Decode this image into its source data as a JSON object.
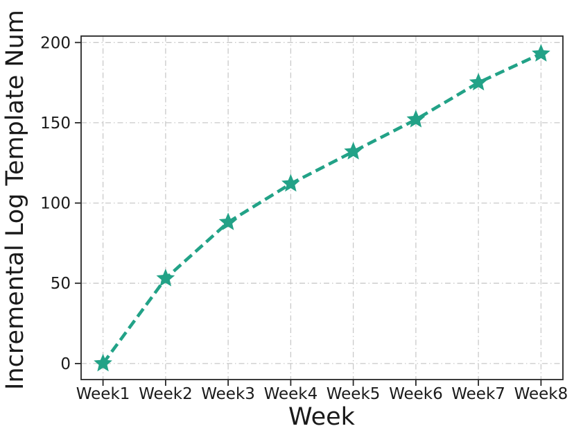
{
  "figure": {
    "background": "#ffffff"
  },
  "chart_data": {
    "type": "line",
    "title": "",
    "xlabel": "Week",
    "ylabel": "Incremental Log Template Num",
    "categories": [
      "Week1",
      "Week2",
      "Week3",
      "Week4",
      "Week5",
      "Week6",
      "Week7",
      "Week8"
    ],
    "series": [
      {
        "name": "Incremental Log Template Num",
        "values": [
          0,
          53,
          88,
          112,
          132,
          152,
          175,
          193
        ]
      }
    ],
    "yticks": [
      0,
      50,
      100,
      150,
      200
    ],
    "ytick_labels": [
      "0",
      "50",
      "100",
      "150",
      "200"
    ],
    "ylim": [
      -10,
      204
    ],
    "xlim": [
      -0.35,
      7.35
    ],
    "grid": "both-axes dash-dot",
    "legend": "none",
    "line_style": "dashed",
    "marker": "star",
    "colors": {
      "line": "#22a287",
      "grid": "#c9c9c9",
      "axis": "#262626",
      "text": "#1a1a1a"
    }
  }
}
